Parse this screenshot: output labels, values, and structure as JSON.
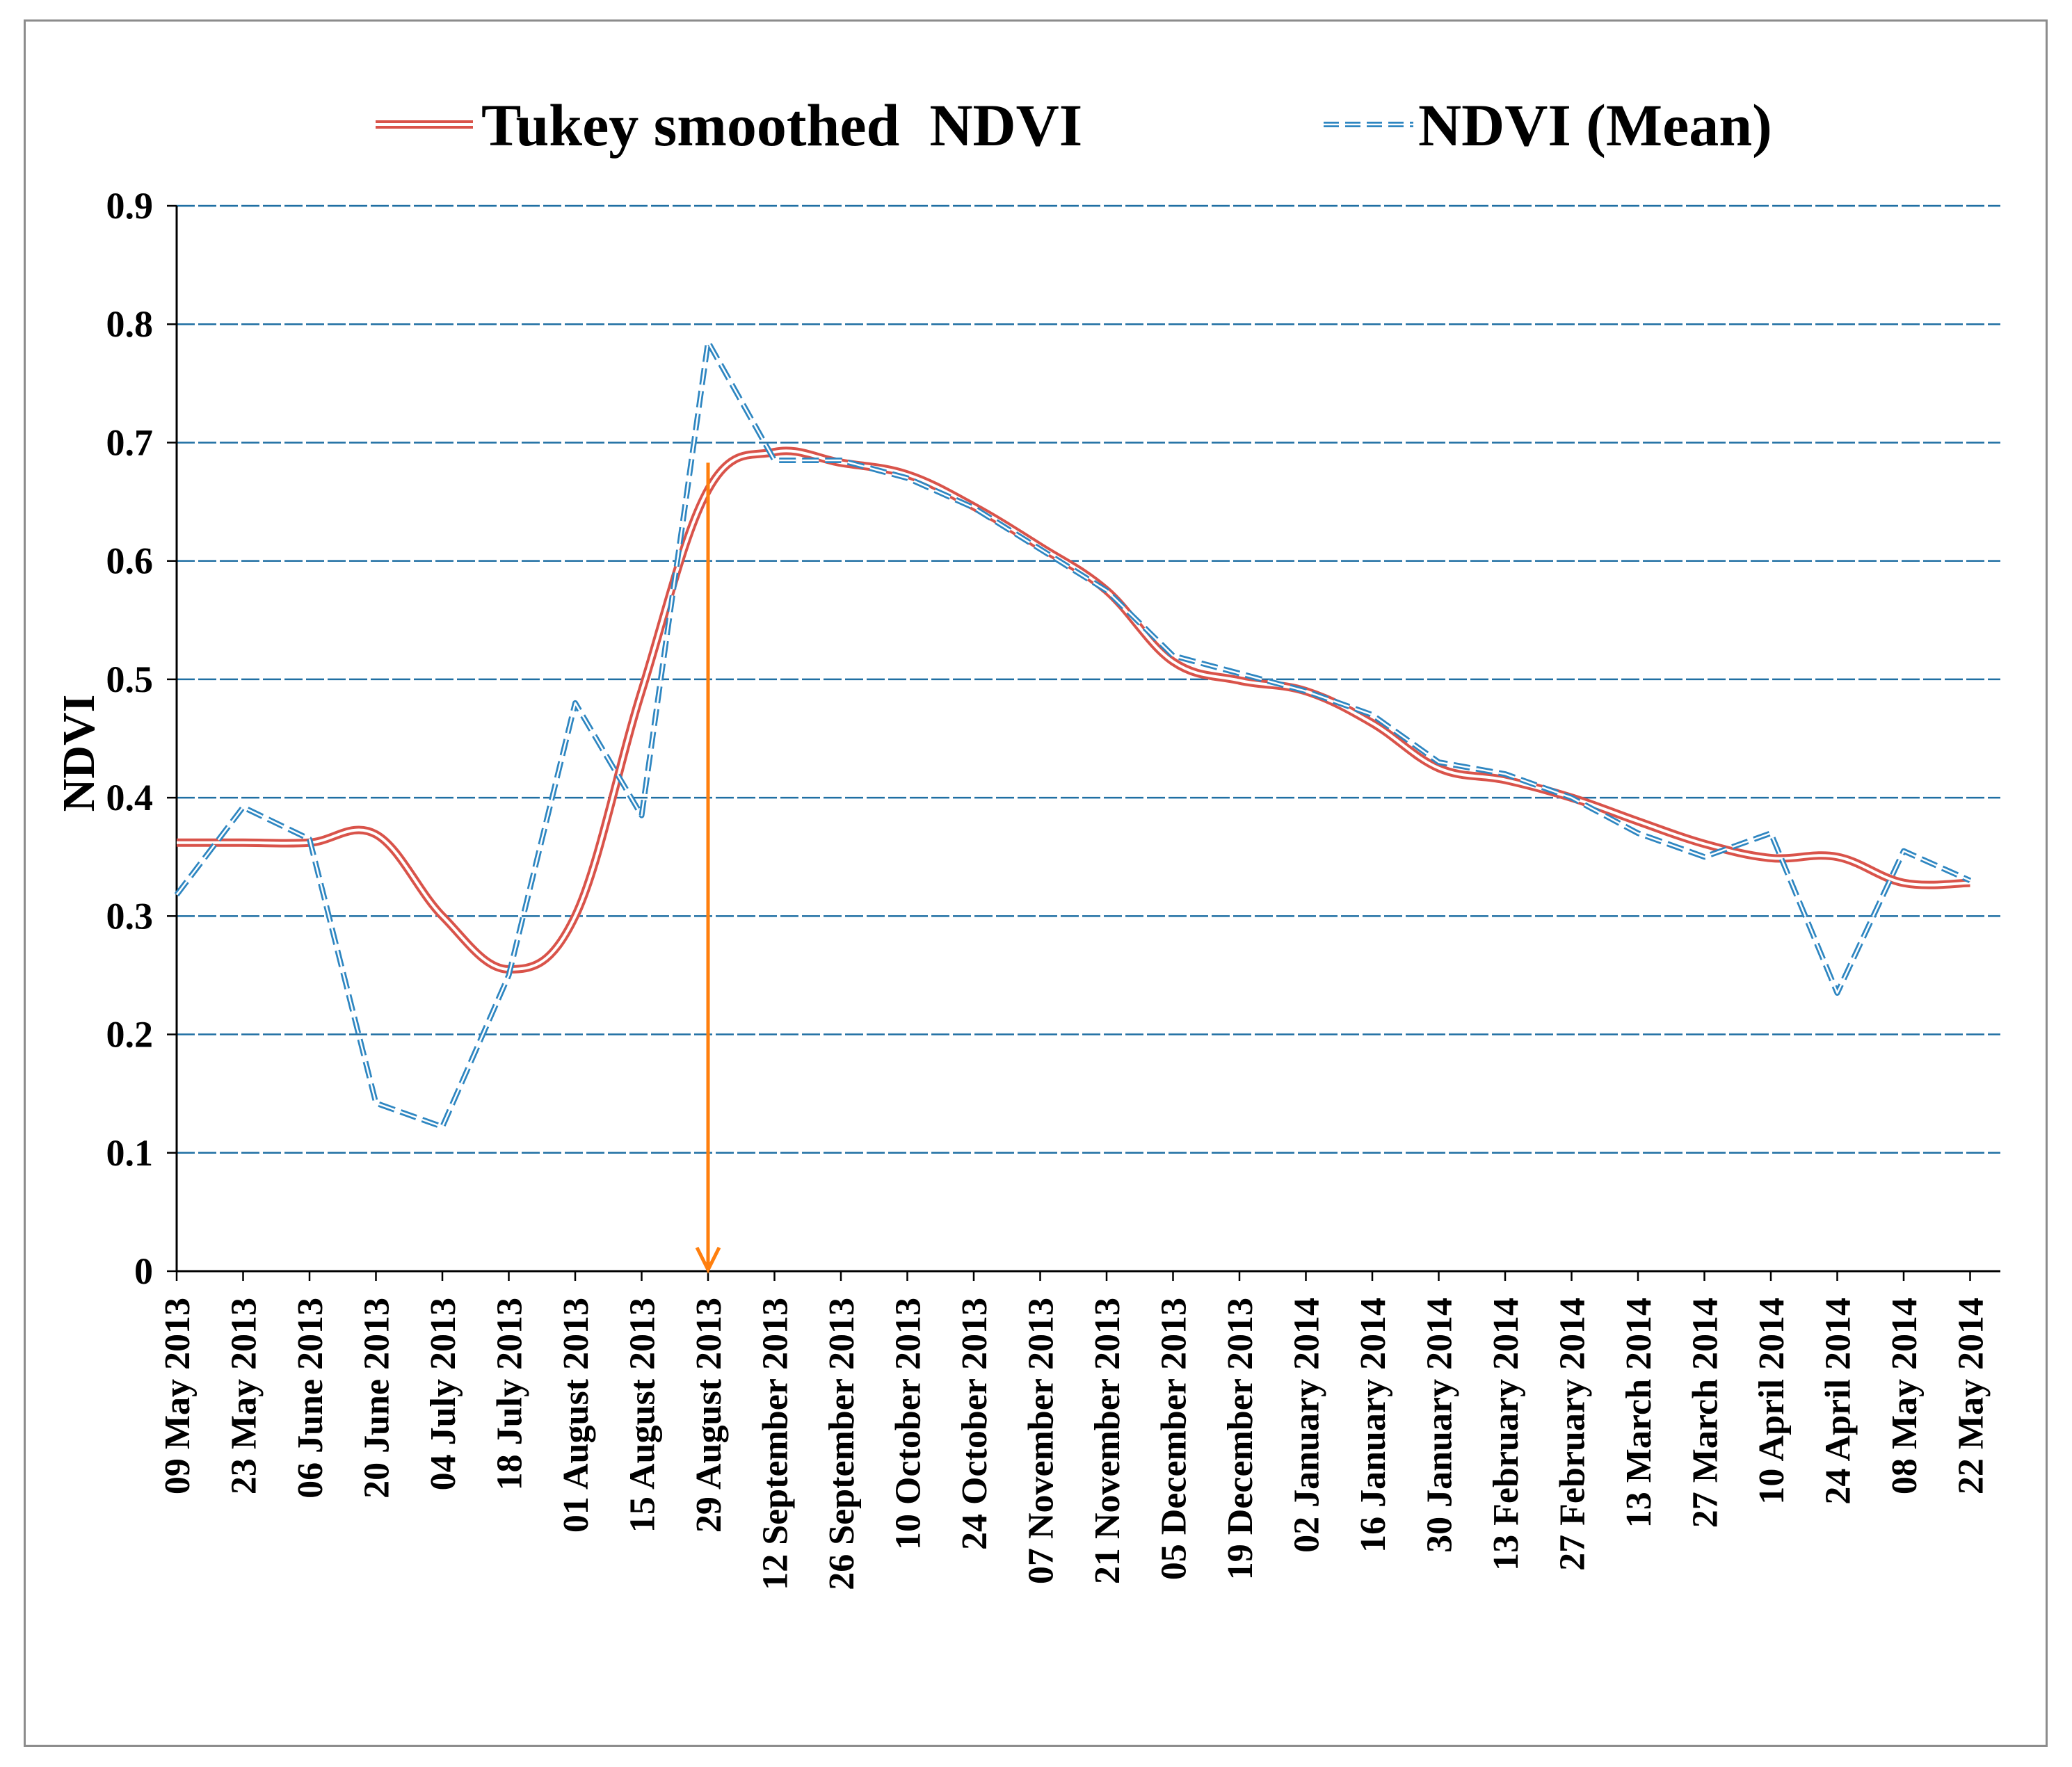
{
  "chart_data": {
    "type": "line",
    "title": "",
    "xlabel": "",
    "ylabel": "NDVI",
    "ylim": [
      0,
      0.9
    ],
    "yticks": [
      "0",
      "0.1",
      "0.2",
      "0.3",
      "0.4",
      "0.5",
      "0.6",
      "0.7",
      "0.8",
      "0.9"
    ],
    "grid": true,
    "legend_position": "top",
    "categories": [
      "09 May 2013",
      "23 May 2013",
      "06 June 2013",
      "20 June 2013",
      "04 July 2013",
      "18 July 2013",
      "01 August 2013",
      "15 August 2013",
      "29 August 2013",
      "12 September 2013",
      "26 September 2013",
      "10 October 2013",
      "24 October 2013",
      "07 November 2013",
      "21 November 2013",
      "05 December 2013",
      "19 December 2013",
      "02 January 2014",
      "16 January 2014",
      "30 January 2014",
      "13 February 2014",
      "27 February 2014",
      "13 March 2014",
      "27 March 2014",
      "10 April 2014",
      "24 April 2014",
      "08 May 2014",
      "22 May 2014"
    ],
    "series": [
      {
        "name": "Tukey smoothed  NDVI",
        "style": "double-line",
        "color": "#d9534a",
        "values": [
          0.362,
          0.362,
          0.362,
          0.369,
          0.3,
          0.255,
          0.3,
          0.49,
          0.66,
          0.692,
          0.683,
          0.673,
          0.646,
          0.612,
          0.575,
          0.515,
          0.499,
          0.49,
          0.463,
          0.425,
          0.415,
          0.4,
          0.38,
          0.361,
          0.349,
          0.35,
          0.328,
          0.328
        ]
      },
      {
        "name": "NDVI (Mean)",
        "style": "dashed",
        "color": "#2e86c1",
        "values": [
          0.318,
          0.392,
          0.365,
          0.142,
          0.122,
          0.25,
          0.48,
          0.385,
          0.785,
          0.685,
          0.685,
          0.67,
          0.645,
          0.61,
          0.575,
          0.52,
          0.505,
          0.49,
          0.47,
          0.43,
          0.42,
          0.4,
          0.37,
          0.35,
          0.37,
          0.235,
          0.355,
          0.33
        ]
      }
    ],
    "annotations": [
      {
        "type": "arrow",
        "category": "29 August 2013",
        "from_y": 0.683,
        "to_y": 0.0,
        "color": "#ff7f0e"
      }
    ]
  }
}
